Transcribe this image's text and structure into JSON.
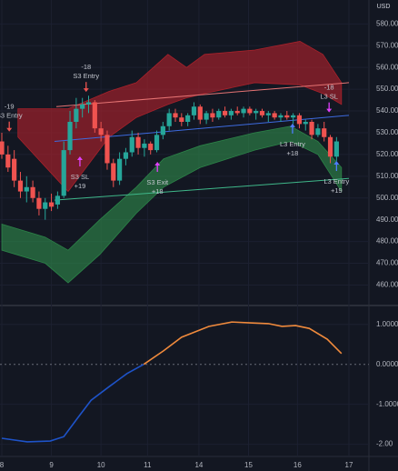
{
  "chart_data": {
    "type": "candlestick",
    "currency": "USD",
    "xlim": [
      0,
      56
    ],
    "xticks": [
      {
        "value": 0,
        "label": "8"
      },
      {
        "value": 8,
        "label": "9"
      },
      {
        "value": 16,
        "label": "10"
      },
      {
        "value": 23.5,
        "label": "11"
      },
      {
        "value": 31.8,
        "label": "14"
      },
      {
        "value": 39.8,
        "label": "15"
      },
      {
        "value": 47.7,
        "label": "16"
      },
      {
        "value": 56,
        "label": "17"
      }
    ],
    "ylim": [
      451,
      591
    ],
    "yticks": [
      {
        "value": 460,
        "label": "460.00"
      },
      {
        "value": 470,
        "label": "470.00"
      },
      {
        "value": 480,
        "label": "480.00"
      },
      {
        "value": 490,
        "label": "490.00"
      },
      {
        "value": 500,
        "label": "500.00"
      },
      {
        "value": 510,
        "label": "510.00"
      },
      {
        "value": 520,
        "label": "520.00"
      },
      {
        "value": 530,
        "label": "530.00"
      },
      {
        "value": 540,
        "label": "540.00"
      },
      {
        "value": 550,
        "label": "550.00"
      },
      {
        "value": 560,
        "label": "560.00"
      },
      {
        "value": 570,
        "label": "570.00"
      },
      {
        "value": 580,
        "label": "580.00"
      }
    ],
    "up_color": "#26a69a",
    "down_color": "#ef5350",
    "x": [
      0,
      1,
      2,
      3,
      4,
      5,
      6,
      7,
      8,
      9,
      10,
      11,
      12,
      13,
      14,
      15,
      16,
      17,
      18,
      19,
      20,
      21,
      22,
      23,
      24,
      25,
      26,
      27,
      28,
      29,
      30,
      31,
      32,
      33,
      34,
      35,
      36,
      37,
      38,
      39,
      40,
      41,
      42,
      43,
      44,
      45,
      46,
      47,
      48,
      49,
      50,
      51,
      52,
      53,
      54
    ],
    "open": [
      526,
      520,
      518,
      508,
      503,
      505,
      500,
      495,
      498,
      497,
      501,
      522,
      535,
      541,
      543,
      544,
      532,
      529,
      516,
      508,
      518,
      521,
      528,
      523,
      525,
      522,
      529,
      533,
      539,
      537,
      535,
      538,
      542,
      536,
      539,
      537,
      540,
      538,
      540,
      539,
      541,
      539,
      540,
      538,
      539,
      537,
      538,
      537,
      538,
      534,
      535,
      529,
      532,
      528,
      519
    ],
    "high": [
      530,
      524,
      522,
      512,
      510,
      508,
      503,
      500,
      502,
      503,
      526,
      540,
      546,
      546,
      547,
      545,
      535,
      531,
      518,
      521,
      523,
      531,
      530,
      527,
      526,
      531,
      535,
      541,
      541,
      539,
      539,
      544,
      543,
      540,
      541,
      541,
      542,
      541,
      542,
      542,
      542,
      541,
      541,
      540,
      540,
      539,
      540,
      539,
      539,
      536,
      536,
      534,
      535,
      529,
      528
    ],
    "low": [
      518,
      512,
      505,
      500,
      498,
      498,
      492,
      490,
      494,
      495,
      500,
      520,
      532,
      537,
      539,
      530,
      526,
      513,
      505,
      506,
      515,
      519,
      520,
      519,
      520,
      521,
      527,
      531,
      535,
      533,
      533,
      536,
      534,
      534,
      535,
      536,
      537,
      536,
      538,
      537,
      538,
      536,
      537,
      535,
      536,
      535,
      536,
      534,
      532,
      531,
      527,
      528,
      526,
      516,
      517
    ],
    "close": [
      520,
      514,
      508,
      503,
      505,
      500,
      495,
      498,
      496,
      501,
      522,
      535,
      541,
      543,
      544,
      532,
      529,
      516,
      508,
      518,
      521,
      528,
      523,
      525,
      522,
      529,
      533,
      539,
      537,
      535,
      538,
      542,
      536,
      539,
      537,
      540,
      538,
      540,
      539,
      541,
      539,
      540,
      538,
      539,
      537,
      538,
      537,
      538,
      534,
      535,
      529,
      532,
      528,
      519,
      526
    ],
    "bands": [
      {
        "color": "#b2222b",
        "x": [
          2.6,
          10.7,
          17.3,
          21.7,
          26.8,
          29.8,
          32.7,
          40.8,
          48.1,
          51.8,
          54.8
        ],
        "upper": [
          541,
          541,
          549,
          553,
          566,
          560,
          566,
          568,
          572,
          566,
          553
        ],
        "lower": [
          528,
          503,
          528,
          537,
          543,
          546,
          548,
          553,
          552,
          548,
          543
        ]
      },
      {
        "color": "#2e8b4a",
        "x": [
          0,
          7,
          10.7,
          15.8,
          21.7,
          26.1,
          32,
          40.8,
          46.6,
          51,
          54.8
        ],
        "upper": [
          488,
          482,
          476,
          490,
          505,
          518,
          524,
          530,
          533,
          526,
          514
        ],
        "lower": [
          476,
          470,
          461,
          474,
          493,
          505,
          514,
          522,
          526,
          520,
          503
        ]
      }
    ],
    "lines": [
      {
        "color": "#e57373",
        "x": [
          8.8,
          56
        ],
        "values": [
          542,
          553
        ]
      },
      {
        "color": "#3d6be0",
        "x": [
          8.5,
          56
        ],
        "values": [
          526,
          538
        ]
      },
      {
        "color": "#3fb88a",
        "x": [
          8.5,
          56
        ],
        "values": [
          499,
          509
        ]
      }
    ],
    "annotations": [
      {
        "x": 1.2,
        "y": 541.8,
        "lines": [
          "-19",
          "S3 Entry"
        ],
        "color": "#ef5350",
        "arrow": "down"
      },
      {
        "x": 13.6,
        "y": 560,
        "lines": [
          "-18",
          "S3 Entry"
        ],
        "color": "#ef5350",
        "arrow": "down"
      },
      {
        "x": 12.6,
        "y": 509.5,
        "lines": [
          "S3 SL",
          "+19"
        ],
        "color": "#e040fb",
        "arrow": "up"
      },
      {
        "x": 25.1,
        "y": 507,
        "lines": [
          "S3 Exit",
          "+18"
        ],
        "color": "#e040fb",
        "arrow": "up"
      },
      {
        "x": 46.9,
        "y": 524.6,
        "lines": [
          "L3 Entry",
          "+18"
        ],
        "color": "#4f7cff",
        "arrow": "up"
      },
      {
        "x": 52.8,
        "y": 550.6,
        "lines": [
          "-18",
          "L3 SL"
        ],
        "color": "#e040fb",
        "arrow": "down"
      },
      {
        "x": 54,
        "y": 507.4,
        "lines": [
          "L3 Entry",
          "+19"
        ],
        "color": "#4f7cff",
        "arrow": "up"
      }
    ],
    "oscillator": {
      "ylim": [
        -2.26,
        1.45
      ],
      "yticks": [
        {
          "value": 1,
          "label": "1.0000"
        },
        {
          "value": 0,
          "label": "0.0000"
        },
        {
          "value": -1,
          "label": "-1.0000"
        },
        {
          "value": -2,
          "label": "-2.00"
        }
      ],
      "series": [
        {
          "color": "#1e53c8",
          "x": [
            0,
            4.1,
            7.8,
            10,
            12.2,
            14.4,
            17.3,
            20.2,
            22.9
          ],
          "values": [
            -1.85,
            -1.94,
            -1.92,
            -1.81,
            -1.35,
            -0.9,
            -0.56,
            -0.23,
            0
          ]
        },
        {
          "color": "#f08a3c",
          "x": [
            22.9,
            26.1,
            29,
            33.4,
            37.1,
            40,
            43,
            45.2,
            47.4,
            49.6,
            52.5,
            54.8
          ],
          "values": [
            0,
            0.34,
            0.68,
            0.95,
            1.06,
            1.04,
            1.02,
            0.95,
            0.97,
            0.9,
            0.63,
            0.27
          ]
        }
      ]
    }
  }
}
